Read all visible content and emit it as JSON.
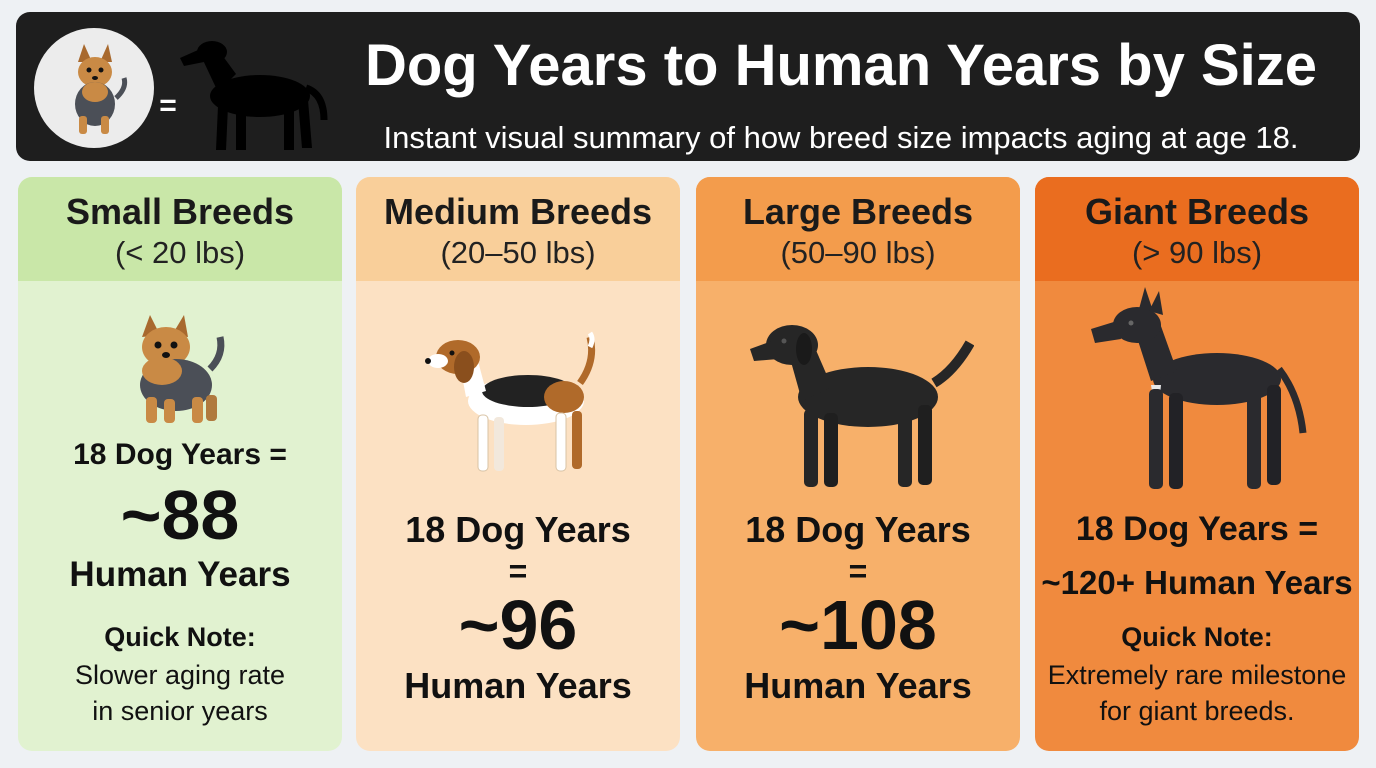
{
  "header": {
    "title": "Dog Years to Human Years by Size",
    "subtitle": "Instant visual summary of how breed size impacts aging at age 18.",
    "logo_equals": "=",
    "logo_icons": [
      "yorkie-icon",
      "dog-silhouette-icon"
    ]
  },
  "colors": {
    "header_bg": "#1e1e1e",
    "small_head": "#c9e7a8",
    "small_body": "#e1f2d0",
    "medium_head": "#f9cf9a",
    "medium_body": "#fce1c3",
    "large_head": "#f39c4c",
    "large_body": "#f7b06a",
    "giant_head": "#ea6d1f",
    "giant_body": "#f08a3e"
  },
  "cards": [
    {
      "title": "Small Breeds",
      "range": "(< 20 lbs)",
      "dog_icon": "yorkie-icon",
      "line1": "18 Dog Years =",
      "value": "~88",
      "line3": "Human Years",
      "note_label": "Quick Note:",
      "note_lines": [
        "Slower aging rate",
        "in senior years"
      ]
    },
    {
      "title": "Medium Breeds",
      "range": "(20–50 lbs)",
      "dog_icon": "beagle-icon",
      "line1": "18 Dog Years",
      "equals": "=",
      "value": "~96",
      "line3": "Human Years"
    },
    {
      "title": "Large Breeds",
      "range": "(50–90 lbs)",
      "dog_icon": "labrador-icon",
      "line1": "18 Dog Years",
      "equals": "=",
      "value": "~108",
      "line3": "Human Years"
    },
    {
      "title": "Giant Breeds",
      "range": "(> 90 lbs)",
      "dog_icon": "great-dane-icon",
      "line1": "18 Dog Years =",
      "value_line": "~120+ Human Years",
      "note_label": "Quick Note:",
      "note_lines": [
        "Extremely rare milestone",
        "for giant breeds."
      ]
    }
  ]
}
